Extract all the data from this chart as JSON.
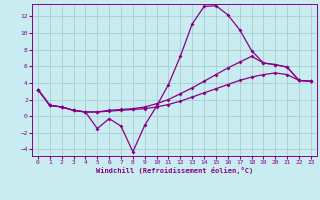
{
  "xlabel": "Windchill (Refroidissement éolien,°C)",
  "background_color": "#c8ecf0",
  "grid_color": "#a8ccd0",
  "line_color": "#880088",
  "xlim": [
    -0.5,
    23.5
  ],
  "ylim": [
    -4.8,
    13.5
  ],
  "xticks": [
    0,
    1,
    2,
    3,
    4,
    5,
    6,
    7,
    8,
    9,
    10,
    11,
    12,
    13,
    14,
    15,
    16,
    17,
    18,
    19,
    20,
    21,
    22,
    23
  ],
  "yticks": [
    -4,
    -2,
    0,
    2,
    4,
    6,
    8,
    10,
    12
  ],
  "line1_x": [
    0,
    1,
    2,
    3,
    4,
    5,
    6,
    7,
    8,
    9,
    10,
    11,
    12,
    13,
    14,
    15,
    16,
    17,
    18,
    19,
    20,
    21,
    22,
    23
  ],
  "line1_y": [
    3.2,
    1.3,
    1.1,
    0.7,
    0.5,
    -1.5,
    -0.3,
    -1.2,
    -4.3,
    -1.1,
    1.2,
    3.8,
    7.2,
    11.1,
    13.2,
    13.3,
    12.2,
    10.4,
    7.9,
    6.4,
    6.2,
    5.9,
    4.3,
    4.2
  ],
  "line2_x": [
    0,
    1,
    2,
    3,
    4,
    5,
    6,
    7,
    8,
    9,
    10,
    11,
    12,
    13,
    14,
    15,
    16,
    17,
    18,
    19,
    20,
    21,
    22,
    23
  ],
  "line2_y": [
    3.2,
    1.3,
    1.1,
    0.7,
    0.5,
    0.5,
    0.7,
    0.8,
    0.9,
    1.1,
    1.5,
    2.0,
    2.7,
    3.4,
    4.2,
    5.0,
    5.8,
    6.5,
    7.2,
    6.4,
    6.2,
    5.9,
    4.3,
    4.2
  ],
  "line3_x": [
    0,
    1,
    2,
    3,
    4,
    5,
    6,
    7,
    8,
    9,
    10,
    11,
    12,
    13,
    14,
    15,
    16,
    17,
    18,
    19,
    20,
    21,
    22,
    23
  ],
  "line3_y": [
    3.2,
    1.3,
    1.1,
    0.7,
    0.5,
    0.5,
    0.6,
    0.7,
    0.8,
    0.9,
    1.1,
    1.4,
    1.8,
    2.3,
    2.8,
    3.3,
    3.8,
    4.3,
    4.7,
    5.0,
    5.2,
    5.0,
    4.3,
    4.2
  ]
}
